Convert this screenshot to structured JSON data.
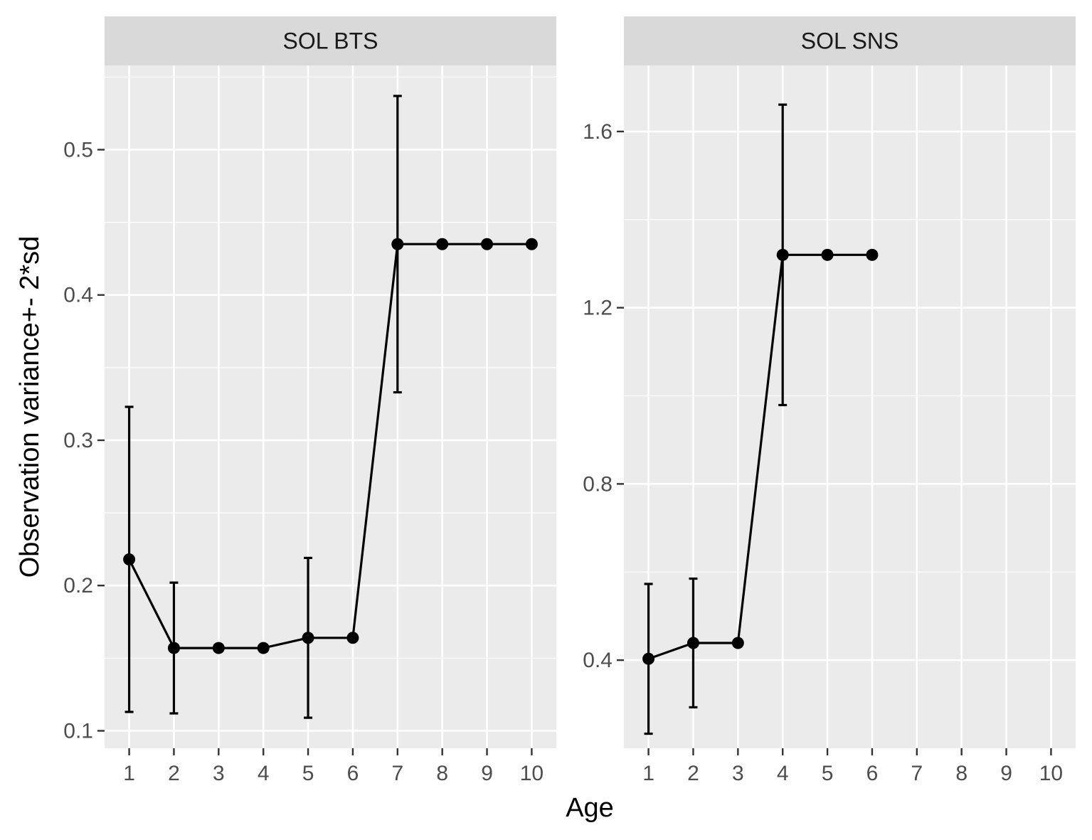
{
  "chart_data": {
    "type": "line",
    "xlabel": "Age",
    "ylabel": "Observation variance+- 2*sd",
    "x_ticks": [
      1,
      2,
      3,
      4,
      5,
      6,
      7,
      8,
      9,
      10
    ],
    "colors": {
      "panel_bg": "#ebebeb",
      "strip_bg": "#d9d9d9",
      "grid": "#ffffff",
      "line": "#000000",
      "tick_text": "#4d4d4d"
    },
    "panels": [
      {
        "title": "SOL BTS",
        "ylim": [
          0.088,
          0.558
        ],
        "y_ticks": [
          0.1,
          0.2,
          0.3,
          0.4,
          0.5
        ],
        "y_tick_labels": [
          "0.1",
          "0.2",
          "0.3",
          "0.4",
          "0.5"
        ],
        "xlim": [
          0.45,
          10.55
        ],
        "points": [
          {
            "x": 1,
            "y": 0.218,
            "lower": 0.113,
            "upper": 0.323
          },
          {
            "x": 2,
            "y": 0.157,
            "lower": 0.112,
            "upper": 0.202
          },
          {
            "x": 3,
            "y": 0.157
          },
          {
            "x": 4,
            "y": 0.157
          },
          {
            "x": 5,
            "y": 0.164,
            "lower": 0.109,
            "upper": 0.219
          },
          {
            "x": 6,
            "y": 0.164
          },
          {
            "x": 7,
            "y": 0.435,
            "lower": 0.333,
            "upper": 0.537
          },
          {
            "x": 8,
            "y": 0.435
          },
          {
            "x": 9,
            "y": 0.435
          },
          {
            "x": 10,
            "y": 0.435
          }
        ]
      },
      {
        "title": "SOL SNS",
        "ylim": [
          0.2,
          1.75
        ],
        "y_ticks": [
          0.4,
          0.8,
          1.2,
          1.6
        ],
        "y_tick_labels": [
          "0.4",
          "0.8",
          "1.2",
          "1.6"
        ],
        "xlim": [
          0.45,
          10.55
        ],
        "points": [
          {
            "x": 1,
            "y": 0.403,
            "lower": 0.233,
            "upper": 0.573
          },
          {
            "x": 2,
            "y": 0.439,
            "lower": 0.293,
            "upper": 0.585
          },
          {
            "x": 3,
            "y": 0.439
          },
          {
            "x": 4,
            "y": 1.32,
            "lower": 0.979,
            "upper": 1.661
          },
          {
            "x": 5,
            "y": 1.32
          },
          {
            "x": 6,
            "y": 1.32
          }
        ]
      }
    ]
  }
}
